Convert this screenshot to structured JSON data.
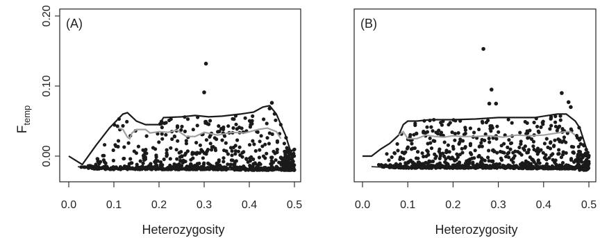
{
  "figure": {
    "ylabel_main": "F",
    "ylabel_sub": "temp",
    "xlabel": "Heterozygosity"
  },
  "chart_data": [
    {
      "type": "scatter",
      "panel_label": "(A)",
      "xlabel": "Heterozygosity",
      "ylabel": "Ftemp",
      "xlim": [
        0.0,
        0.5
      ],
      "ylim": [
        -0.02,
        0.2
      ],
      "x_ticks": [
        0.0,
        0.1,
        0.2,
        0.3,
        0.4,
        0.5
      ],
      "x_tick_labels": [
        "0.0",
        "0.1",
        "0.2",
        "0.3",
        "0.4",
        "0.5"
      ],
      "y_ticks": [
        0.0,
        0.1,
        0.2
      ],
      "y_tick_labels": [
        "0.00",
        "0.10",
        "0.20"
      ],
      "grid": false,
      "marker_color": "#1a1a1a",
      "upper_envelope_color": "#1a1a1a",
      "median_line_color": "#a0a0a0",
      "upper_envelope": [
        [
          0.0,
          0.0
        ],
        [
          0.03,
          -0.012
        ],
        [
          0.06,
          0.015
        ],
        [
          0.09,
          0.04
        ],
        [
          0.12,
          0.06
        ],
        [
          0.13,
          0.062
        ],
        [
          0.15,
          0.05
        ],
        [
          0.17,
          0.045
        ],
        [
          0.2,
          0.045
        ],
        [
          0.21,
          0.055
        ],
        [
          0.25,
          0.056
        ],
        [
          0.28,
          0.058
        ],
        [
          0.31,
          0.056
        ],
        [
          0.34,
          0.057
        ],
        [
          0.38,
          0.06
        ],
        [
          0.41,
          0.063
        ],
        [
          0.43,
          0.07
        ],
        [
          0.445,
          0.072
        ],
        [
          0.46,
          0.06
        ],
        [
          0.47,
          0.045
        ],
        [
          0.48,
          0.03
        ],
        [
          0.49,
          0.01
        ],
        [
          0.5,
          -0.015
        ]
      ],
      "lower_envelope": [
        [
          0.02,
          -0.015
        ],
        [
          0.05,
          -0.018
        ],
        [
          0.1,
          -0.019
        ],
        [
          0.2,
          -0.019
        ],
        [
          0.3,
          -0.019
        ],
        [
          0.4,
          -0.02
        ],
        [
          0.5,
          -0.02
        ]
      ],
      "median_line": [
        [
          0.11,
          0.04
        ],
        [
          0.12,
          0.038
        ],
        [
          0.13,
          0.027
        ],
        [
          0.135,
          0.025
        ],
        [
          0.14,
          0.033
        ],
        [
          0.15,
          0.038
        ],
        [
          0.17,
          0.038
        ],
        [
          0.18,
          0.033
        ],
        [
          0.2,
          0.035
        ],
        [
          0.22,
          0.034
        ],
        [
          0.24,
          0.037
        ],
        [
          0.26,
          0.028
        ],
        [
          0.28,
          0.028
        ],
        [
          0.3,
          0.034
        ],
        [
          0.33,
          0.03
        ],
        [
          0.36,
          0.034
        ],
        [
          0.39,
          0.033
        ],
        [
          0.42,
          0.038
        ],
        [
          0.44,
          0.04
        ],
        [
          0.46,
          0.035
        ],
        [
          0.47,
          0.025
        ]
      ],
      "highlight_points": [
        [
          0.304,
          0.132
        ],
        [
          0.3,
          0.091
        ],
        [
          0.45,
          0.076
        ],
        [
          0.445,
          0.068
        ]
      ],
      "bulk_points": {
        "count": 480,
        "x_range": [
          0.02,
          0.5
        ],
        "follows_envelopes": true
      }
    },
    {
      "type": "scatter",
      "panel_label": "(B)",
      "xlabel": "Heterozygosity",
      "ylabel": "",
      "xlim": [
        0.0,
        0.5
      ],
      "ylim": [
        -0.02,
        0.2
      ],
      "x_ticks": [
        0.0,
        0.1,
        0.2,
        0.3,
        0.4,
        0.5
      ],
      "x_tick_labels": [
        "0.0",
        "0.1",
        "0.2",
        "0.3",
        "0.4",
        "0.5"
      ],
      "y_ticks": [
        0.0,
        0.1,
        0.2
      ],
      "y_tick_labels": [],
      "grid": false,
      "marker_color": "#1a1a1a",
      "upper_envelope_color": "#1a1a1a",
      "median_line_color": "#a0a0a0",
      "upper_envelope": [
        [
          0.0,
          0.0
        ],
        [
          0.02,
          0.0
        ],
        [
          0.04,
          0.01
        ],
        [
          0.06,
          0.018
        ],
        [
          0.08,
          0.03
        ],
        [
          0.09,
          0.045
        ],
        [
          0.1,
          0.05
        ],
        [
          0.12,
          0.05
        ],
        [
          0.15,
          0.052
        ],
        [
          0.2,
          0.052
        ],
        [
          0.25,
          0.053
        ],
        [
          0.3,
          0.055
        ],
        [
          0.35,
          0.055
        ],
        [
          0.38,
          0.055
        ],
        [
          0.41,
          0.058
        ],
        [
          0.43,
          0.06
        ],
        [
          0.45,
          0.06
        ],
        [
          0.47,
          0.05
        ],
        [
          0.48,
          0.04
        ],
        [
          0.49,
          0.02
        ],
        [
          0.5,
          0.0
        ]
      ],
      "lower_envelope": [
        [
          0.02,
          -0.015
        ],
        [
          0.05,
          -0.016
        ],
        [
          0.1,
          -0.017
        ],
        [
          0.2,
          -0.017
        ],
        [
          0.3,
          -0.017
        ],
        [
          0.4,
          -0.018
        ],
        [
          0.5,
          -0.018
        ]
      ],
      "median_line": [
        [
          0.08,
          0.03
        ],
        [
          0.09,
          0.035
        ],
        [
          0.1,
          0.025
        ],
        [
          0.12,
          0.025
        ],
        [
          0.14,
          0.03
        ],
        [
          0.16,
          0.028
        ],
        [
          0.18,
          0.027
        ],
        [
          0.2,
          0.029
        ],
        [
          0.22,
          0.028
        ],
        [
          0.25,
          0.028
        ],
        [
          0.28,
          0.029
        ],
        [
          0.31,
          0.027
        ],
        [
          0.34,
          0.03
        ],
        [
          0.37,
          0.029
        ],
        [
          0.4,
          0.03
        ],
        [
          0.43,
          0.033
        ],
        [
          0.45,
          0.035
        ],
        [
          0.46,
          0.035
        ],
        [
          0.47,
          0.03
        ]
      ],
      "highlight_points": [
        [
          0.267,
          0.153
        ],
        [
          0.285,
          0.095
        ],
        [
          0.28,
          0.075
        ],
        [
          0.295,
          0.075
        ],
        [
          0.44,
          0.09
        ],
        [
          0.455,
          0.077
        ],
        [
          0.46,
          0.07
        ]
      ],
      "bulk_points": {
        "count": 560,
        "x_range": [
          0.02,
          0.5
        ],
        "follows_envelopes": true
      }
    }
  ]
}
